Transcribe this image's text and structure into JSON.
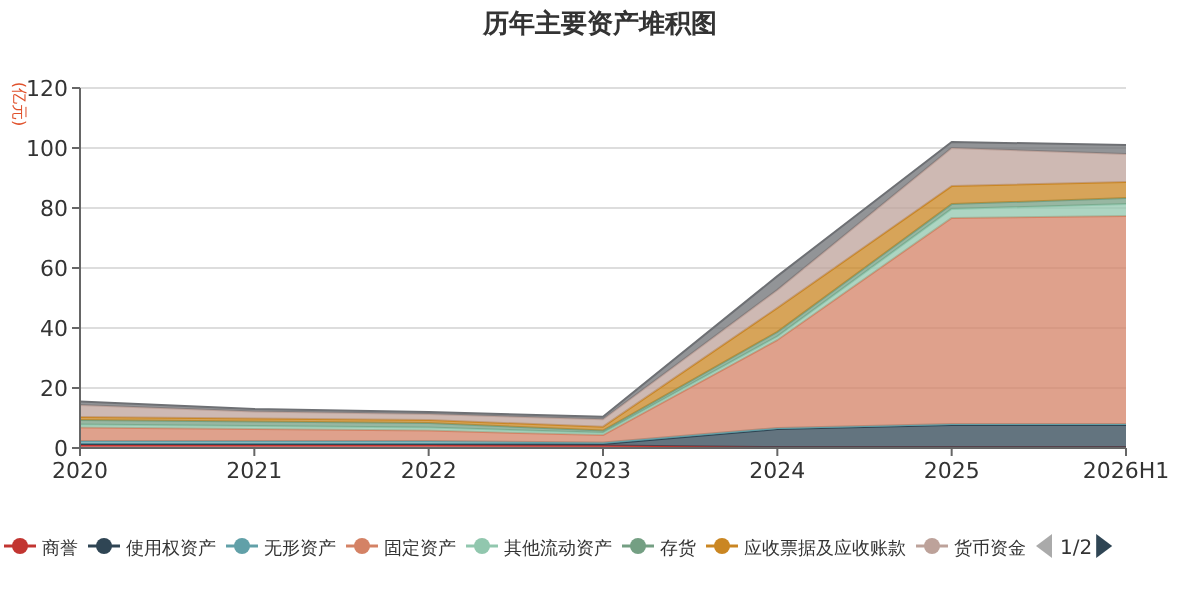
{
  "chart_data": {
    "type": "area",
    "title": "历年主要资产堆积图",
    "ylabel": "(亿元)",
    "stacked": true,
    "legend": "bottom",
    "grid": "y",
    "categories": [
      "2020",
      "2021",
      "2022",
      "2023",
      "2024",
      "2025",
      "2026H1"
    ],
    "ylim": [
      0,
      120
    ],
    "yticks": [
      0,
      20,
      40,
      60,
      80,
      100,
      120
    ],
    "annotations": [
      "1/2"
    ],
    "series": [
      {
        "name": "商誉",
        "color": "#c23531",
        "values": [
          1,
          1,
          1,
          0.8,
          0.3,
          0.3,
          0.3
        ]
      },
      {
        "name": "使用权资产",
        "color": "#2f4554",
        "values": [
          0.3,
          0.3,
          0.3,
          0.5,
          6,
          7.4,
          7.4
        ]
      },
      {
        "name": "无形资产",
        "color": "#61a0a8",
        "values": [
          1,
          1,
          1,
          0.5,
          0.4,
          0.3,
          0.3
        ]
      },
      {
        "name": "固定资产",
        "color": "#d48265",
        "values": [
          4.5,
          4,
          3.5,
          2.5,
          29.3,
          68.7,
          69.3
        ]
      },
      {
        "name": "其他流动资产",
        "color": "#91c7ae",
        "values": [
          1,
          1,
          1,
          0.8,
          1.2,
          3,
          4
        ]
      },
      {
        "name": "存货",
        "color": "#749f83",
        "values": [
          1.5,
          1.5,
          1.5,
          0.7,
          1.5,
          1.6,
          2
        ]
      },
      {
        "name": "应收票据及应收账款",
        "color": "#ca8622",
        "values": [
          1,
          1,
          1,
          1.3,
          8,
          6,
          5.4
        ]
      },
      {
        "name": "货币资金",
        "color": "#bda29a",
        "values": [
          4,
          2.4,
          2,
          2.5,
          6,
          12.7,
          9.3
        ]
      },
      {
        "color": "#6e7074",
        "values": [
          1.2,
          0.8,
          0.7,
          0.8,
          4.6,
          2,
          3
        ]
      }
    ]
  }
}
